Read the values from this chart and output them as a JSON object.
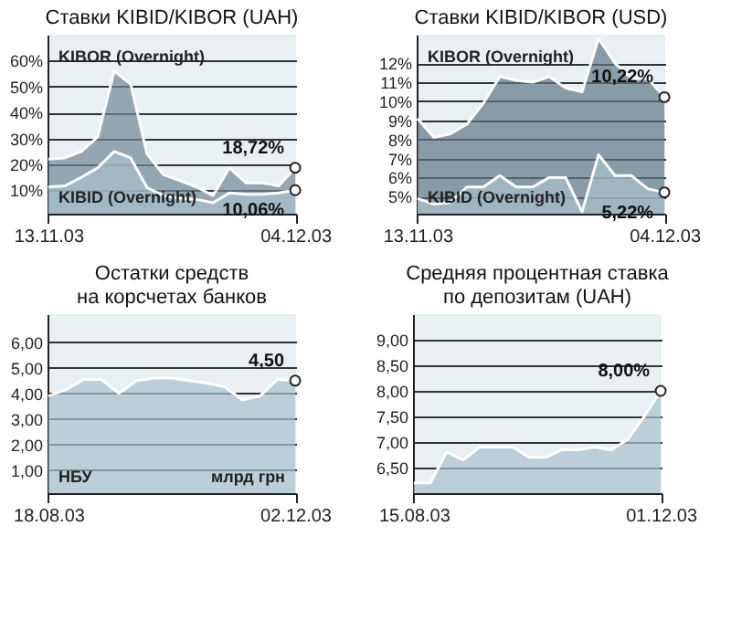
{
  "chart_data": [
    {
      "type": "area",
      "title": "Ставки KIBID/KIBOR (UAH)",
      "categories": [
        "13.11.03",
        null,
        null,
        null,
        null,
        null,
        null,
        null,
        null,
        null,
        null,
        null,
        null,
        null,
        null,
        "04.12.03"
      ],
      "ylim": [
        1,
        70
      ],
      "yticks": [
        {
          "value": 10,
          "label": "10%"
        },
        {
          "value": 20,
          "label": "20%"
        },
        {
          "value": 30,
          "label": "30%"
        },
        {
          "value": 40,
          "label": "40%"
        },
        {
          "value": 50,
          "label": "50%"
        },
        {
          "value": 60,
          "label": "60%"
        }
      ],
      "grid": "y",
      "series": [
        {
          "name": "KIBOR (Overnight)",
          "color": "#6f8694",
          "values": [
            22,
            22.5,
            25,
            30.6,
            56,
            51,
            24,
            16,
            13.7,
            11.3,
            8,
            18.7,
            12.9,
            12.9,
            11.7,
            18.72
          ]
        },
        {
          "name": "KIBID (Overnight)",
          "color": "#a8c0cc",
          "values": [
            11.3,
            11.7,
            15,
            18.7,
            25,
            22.5,
            11,
            8,
            7,
            6.5,
            5.2,
            9,
            8.5,
            8.5,
            9,
            10.06
          ]
        }
      ],
      "annotations": [
        {
          "text": "18,72%",
          "x": "04.12.03",
          "y": 18.72
        },
        {
          "text": "10,06%",
          "x": "04.12.03",
          "y": 10.06
        }
      ]
    },
    {
      "type": "area",
      "title": "Ставки KIBID/KIBOR (USD)",
      "categories": [
        "13.11.03",
        null,
        null,
        null,
        null,
        null,
        null,
        null,
        null,
        null,
        null,
        null,
        null,
        null,
        null,
        "04.12.03"
      ],
      "ylim": [
        4.1,
        13.5
      ],
      "yticks": [
        {
          "value": 5,
          "label": "5%"
        },
        {
          "value": 6,
          "label": "6%"
        },
        {
          "value": 7,
          "label": "7%"
        },
        {
          "value": 8,
          "label": "8%"
        },
        {
          "value": 9,
          "label": "9%"
        },
        {
          "value": 10,
          "label": "10%"
        },
        {
          "value": 11,
          "label": "11%"
        },
        {
          "value": 12,
          "label": "12%"
        }
      ],
      "grid": "y",
      "series": [
        {
          "name": "KIBOR (Overnight)",
          "color": "#607684",
          "values": [
            9.1,
            8.1,
            8.3,
            8.8,
            9.9,
            11.3,
            11.1,
            11,
            11.3,
            10.7,
            10.5,
            13.3,
            12,
            11.2,
            11.2,
            10.22
          ]
        },
        {
          "name": "KIBID (Overnight)",
          "color": "#a8c0cc",
          "values": [
            4.9,
            4.6,
            4.7,
            5.5,
            5.5,
            6.1,
            5.5,
            5.5,
            6,
            6,
            4.2,
            7.2,
            6.1,
            6.1,
            5.4,
            5.22
          ]
        }
      ],
      "annotations": [
        {
          "text": "10,22%",
          "x": "04.12.03",
          "y": 10.22
        },
        {
          "text": "5,22%",
          "x": "04.12.03",
          "y": 5.22
        }
      ]
    },
    {
      "type": "area",
      "title": "Остатки средств\nна корсчетах банков",
      "categories": [
        "18.08.03",
        null,
        null,
        null,
        null,
        null,
        null,
        null,
        null,
        null,
        null,
        null,
        null,
        null,
        "02.12.03"
      ],
      "ylim": [
        0.1,
        7.1
      ],
      "yticks": [
        {
          "value": 1,
          "label": "1,00"
        },
        {
          "value": 2,
          "label": "2,00"
        },
        {
          "value": 3,
          "label": "3,00"
        },
        {
          "value": 4,
          "label": "4,00"
        },
        {
          "value": 5,
          "label": "5,00"
        },
        {
          "value": 6,
          "label": "6,00"
        }
      ],
      "grid": "y",
      "series": [
        {
          "color": "#a8c0cc",
          "values": [
            3.9,
            4.15,
            4.55,
            4.55,
            4,
            4.5,
            4.6,
            4.6,
            4.5,
            4.4,
            4.25,
            3.75,
            3.9,
            4.55,
            4.5
          ]
        }
      ],
      "annotations": [
        {
          "text": "4,50",
          "x": "02.12.03",
          "y": 4.5
        },
        "НБУ",
        "млрд грн"
      ]
    },
    {
      "type": "area",
      "title": "Средняя процентная ставка\nпо депозитам (UAH)",
      "categories": [
        "15.08.03",
        null,
        null,
        null,
        null,
        null,
        null,
        null,
        null,
        null,
        null,
        null,
        null,
        null,
        null,
        "01.12.03"
      ],
      "ylim": [
        6,
        9.5
      ],
      "yticks": [
        {
          "value": 6.5,
          "label": "6,50"
        },
        {
          "value": 7,
          "label": "7,00"
        },
        {
          "value": 7.5,
          "label": "7,50"
        },
        {
          "value": 8,
          "label": "8,00"
        },
        {
          "value": 8.5,
          "label": "8,50"
        },
        {
          "value": 9,
          "label": "9,00"
        }
      ],
      "grid": "y",
      "series": [
        {
          "color": "#a8c0cc",
          "values": [
            6.2,
            6.2,
            6.8,
            6.65,
            6.9,
            6.9,
            6.9,
            6.7,
            6.7,
            6.85,
            6.85,
            6.9,
            6.85,
            7.05,
            7.5,
            8
          ]
        }
      ],
      "annotations": [
        {
          "text": "8,00%",
          "x": "01.12.03",
          "y": 8
        }
      ]
    }
  ]
}
